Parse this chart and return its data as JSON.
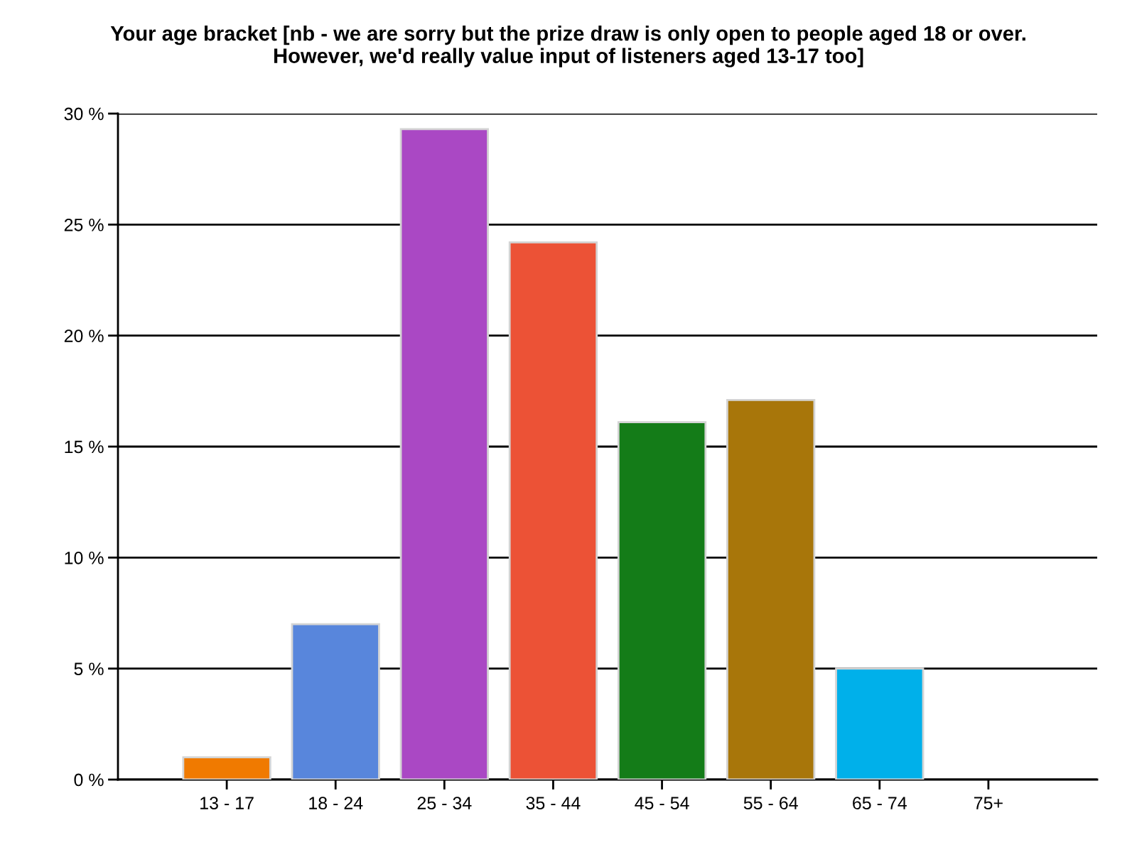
{
  "chart_data": {
    "type": "bar",
    "title": "Your age bracket [nb - we are sorry but the prize draw is only open to people aged 18 or over.\nHowever, we'd really value input of listeners aged 13-17 too]",
    "categories": [
      "13 - 17",
      "18 - 24",
      "25 - 34",
      "35 - 44",
      "45 - 54",
      "55 - 64",
      "65 - 74",
      "75+"
    ],
    "values": [
      1.0,
      7.0,
      29.3,
      24.2,
      16.1,
      17.1,
      5.0,
      0
    ],
    "colors": [
      "#f07a00",
      "#5886dc",
      "#aa48c4",
      "#ec5236",
      "#147c18",
      "#a8760a",
      "#00b0ea",
      null
    ],
    "ylim": [
      0,
      30
    ],
    "yticks": [
      {
        "value": 0,
        "label": "0 %"
      },
      {
        "value": 5,
        "label": "5 %"
      },
      {
        "value": 10,
        "label": "10 %"
      },
      {
        "value": 15,
        "label": "15 %"
      },
      {
        "value": 20,
        "label": "20 %"
      },
      {
        "value": 25,
        "label": "25 %"
      },
      {
        "value": 30,
        "label": "30 %"
      }
    ],
    "grid": "y",
    "legend": false
  }
}
